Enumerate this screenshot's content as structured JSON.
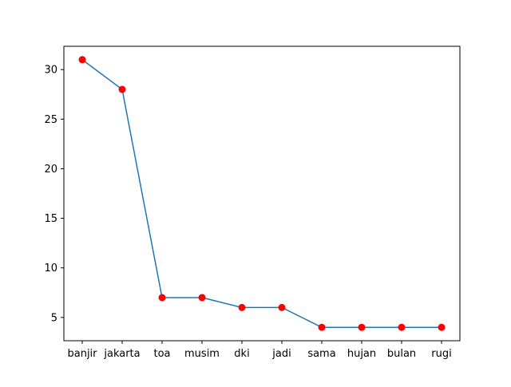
{
  "chart_data": {
    "type": "line",
    "categories": [
      "banjir",
      "jakarta",
      "toa",
      "musim",
      "dki",
      "jadi",
      "sama",
      "hujan",
      "bulan",
      "rugi"
    ],
    "values": [
      31,
      28,
      7,
      7,
      6,
      6,
      4,
      4,
      4,
      4
    ],
    "title": "",
    "xlabel": "",
    "ylabel": "",
    "ylim": [
      2.65,
      32.35
    ],
    "yticks": [
      5,
      10,
      15,
      20,
      25,
      30
    ],
    "grid": false,
    "line_color": "#1f77b4",
    "marker_color": "#ff0000"
  }
}
